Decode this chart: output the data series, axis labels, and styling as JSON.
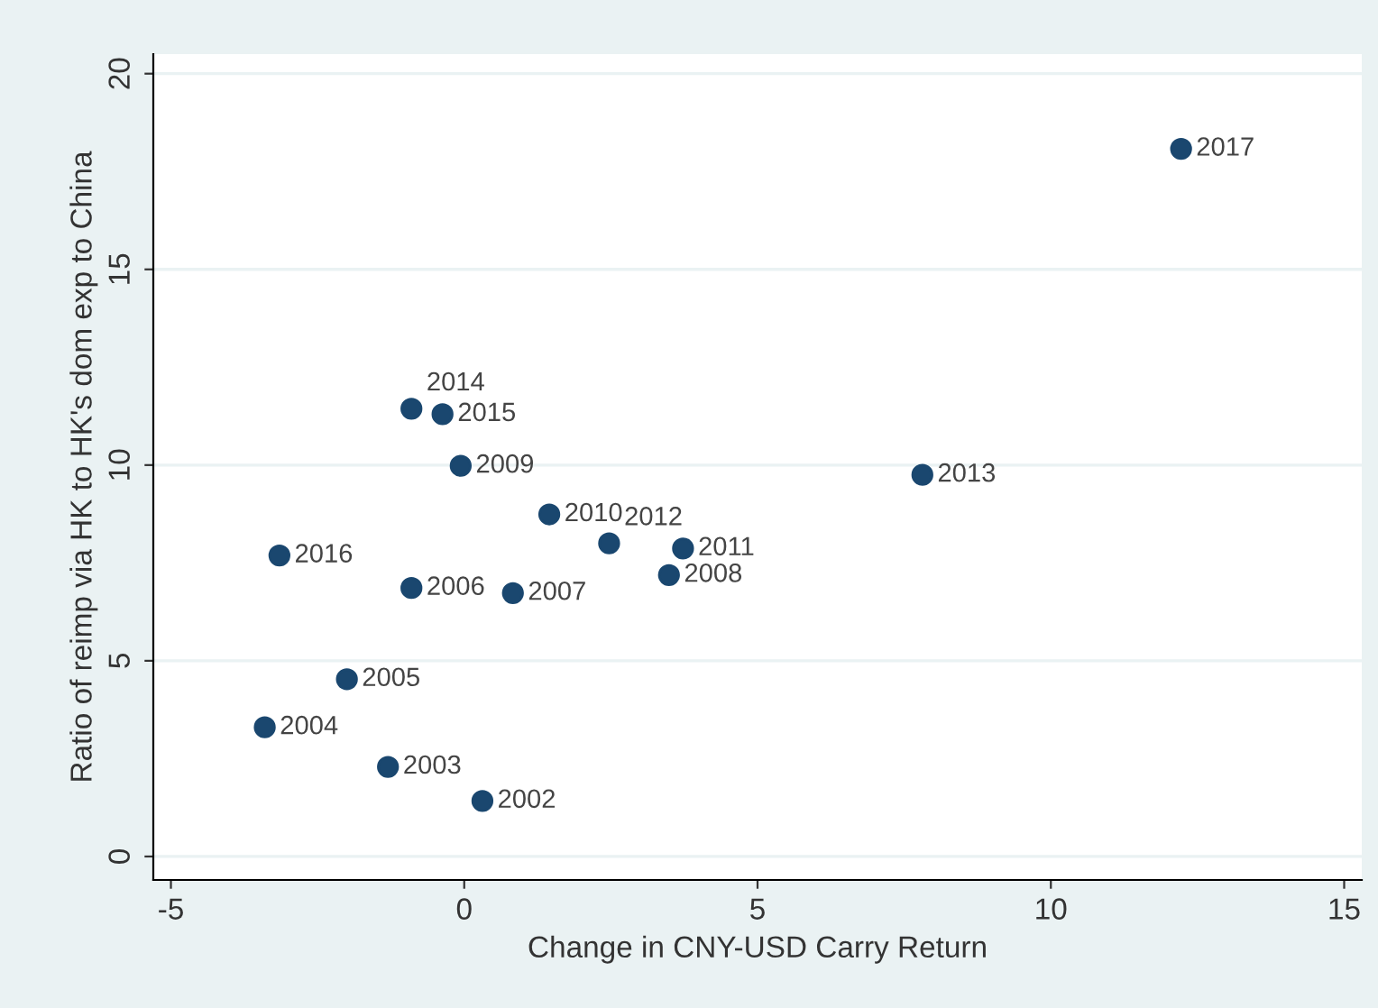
{
  "chart_data": {
    "type": "scatter",
    "xlabel": "Change in CNY-USD Carry Return",
    "ylabel": "Ratio of reimp via HK to HK's dom exp to China",
    "x": [
      0.31,
      -1.3,
      -3.4,
      -2.0,
      -0.9,
      0.83,
      3.49,
      -0.06,
      1.45,
      3.73,
      2.47,
      7.81,
      -0.9,
      -0.37,
      -3.15,
      12.22
    ],
    "series": [
      {
        "color": "#1a476f",
        "values": [
          1.42,
          2.29,
          3.3,
          4.53,
          6.86,
          6.73,
          7.19,
          9.98,
          8.74,
          7.87,
          8.0,
          9.75,
          11.44,
          11.3,
          7.69,
          18.08
        ]
      }
    ],
    "annotations": [
      {
        "text": "2002",
        "x": 0.31,
        "y": 1.42
      },
      {
        "text": "2003",
        "x": -1.3,
        "y": 2.29
      },
      {
        "text": "2004",
        "x": -3.4,
        "y": 3.3
      },
      {
        "text": "2005",
        "x": -2.0,
        "y": 4.53
      },
      {
        "text": "2006",
        "x": -0.9,
        "y": 6.86
      },
      {
        "text": "2007",
        "x": 0.83,
        "y": 6.73
      },
      {
        "text": "2008",
        "x": 3.49,
        "y": 7.19
      },
      {
        "text": "2009",
        "x": -0.06,
        "y": 9.98
      },
      {
        "text": "2010",
        "x": 1.45,
        "y": 8.74
      },
      {
        "text": "2011",
        "x": 3.73,
        "y": 7.87
      },
      {
        "text": "2012",
        "x": 2.47,
        "y": 8.0
      },
      {
        "text": "2013",
        "x": 7.81,
        "y": 9.75
      },
      {
        "text": "2014",
        "x": -0.9,
        "y": 11.44
      },
      {
        "text": "2015",
        "x": -0.37,
        "y": 11.3
      },
      {
        "text": "2016",
        "x": -3.15,
        "y": 7.69
      },
      {
        "text": "2017",
        "x": 12.22,
        "y": 18.08
      }
    ],
    "xlim": [
      -5.3,
      15.3
    ],
    "ylim": [
      -0.6,
      20.5
    ],
    "xticks": [
      -5,
      0,
      5,
      10,
      15
    ],
    "yticks": [
      0,
      5,
      10,
      15,
      20
    ],
    "grid": "y",
    "marker": "circle",
    "legend": false
  }
}
